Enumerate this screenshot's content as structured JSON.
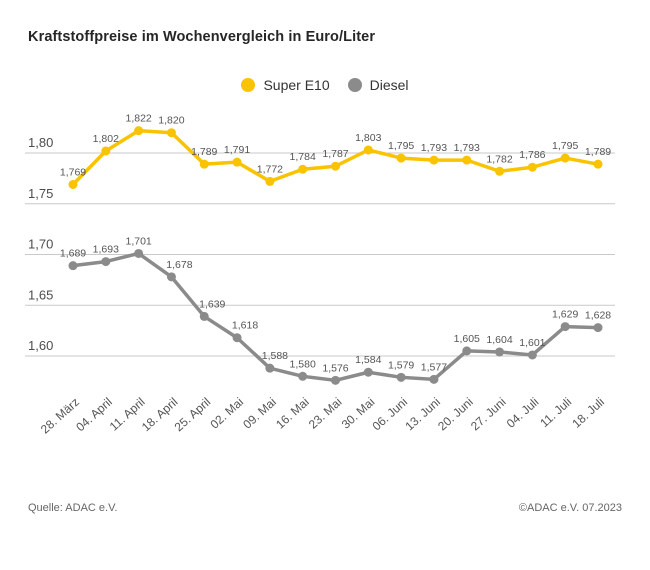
{
  "title": "Kraftstoffpreise im Wochenvergleich in Euro/Liter",
  "legend": {
    "items": [
      {
        "label": "Super E10",
        "color": "#F9C300"
      },
      {
        "label": "Diesel",
        "color": "#8B8B8B"
      }
    ]
  },
  "footer": {
    "source": "Quelle: ADAC e.V.",
    "copyright": "©ADAC e.V. 07.2023"
  },
  "colors": {
    "super_e10": "#F9C300",
    "diesel": "#8B8B8B",
    "gridline": "#C9C9C9",
    "axis_text": "#4D4D4D",
    "value_label": "#555555",
    "title_text": "#262626"
  },
  "chart_data": {
    "type": "line",
    "title": "Kraftstoffpreise im Wochenvergleich in Euro/Liter",
    "xlabel": "",
    "ylabel": "Euro/Liter",
    "categories": [
      "28. März",
      "04. April",
      "11. April",
      "18. April",
      "25. April",
      "02. Mai",
      "09. Mai",
      "16. Mai",
      "23. Mai",
      "30. Mai",
      "06. Juni",
      "13. Juni",
      "20. Juni",
      "27. Juni",
      "04. Juli",
      "11. Juli",
      "18. Juli"
    ],
    "series": [
      {
        "name": "Super E10",
        "color": "#F9C300",
        "values": [
          1.769,
          1.802,
          1.822,
          1.82,
          1.789,
          1.791,
          1.772,
          1.784,
          1.787,
          1.803,
          1.795,
          1.793,
          1.793,
          1.782,
          1.786,
          1.795,
          1.789
        ]
      },
      {
        "name": "Diesel",
        "color": "#8B8B8B",
        "values": [
          1.689,
          1.693,
          1.701,
          1.678,
          1.639,
          1.618,
          1.588,
          1.58,
          1.576,
          1.584,
          1.579,
          1.577,
          1.605,
          1.604,
          1.601,
          1.629,
          1.628
        ]
      }
    ],
    "y_ticks": [
      1.8,
      1.75,
      1.7,
      1.65,
      1.6
    ],
    "y_tick_labels": [
      "1,80",
      "1,75",
      "1,70",
      "1,65",
      "1,60"
    ],
    "ylim": [
      1.575,
      1.835
    ],
    "grid": true,
    "legend_position": "top-center",
    "value_labels": true,
    "decimal_separator": ","
  }
}
